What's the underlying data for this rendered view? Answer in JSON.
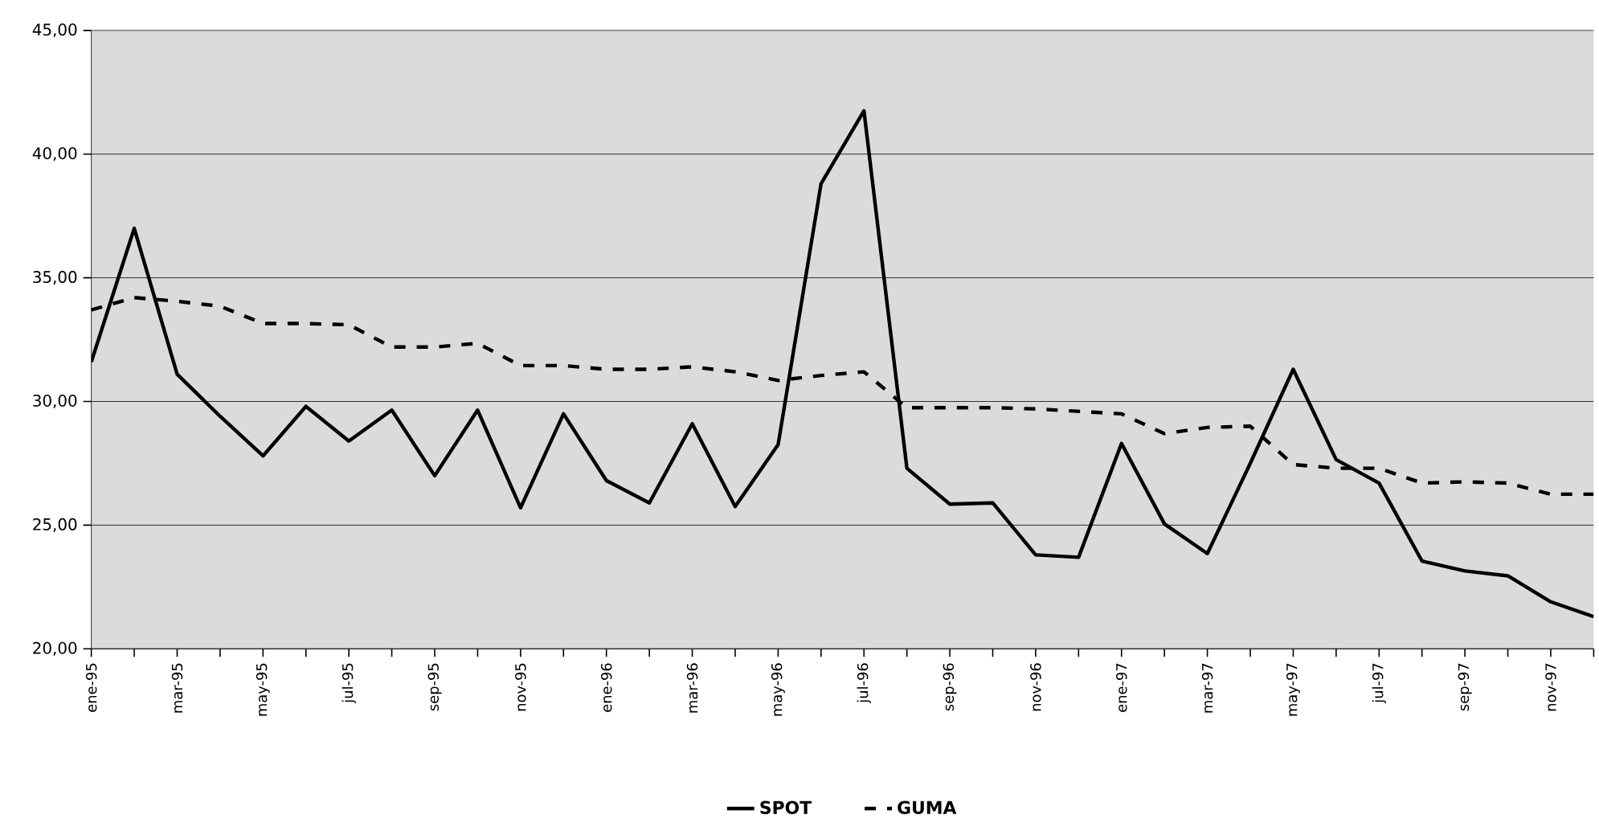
{
  "chart_data": {
    "type": "line",
    "categories": [
      "ene-95",
      null,
      "mar-95",
      null,
      "may-95",
      null,
      "jul-95",
      null,
      "sep-95",
      null,
      "nov-95",
      null,
      "ene-96",
      null,
      "mar-96",
      null,
      "may-96",
      null,
      "jul-96",
      null,
      "sep-96",
      null,
      "nov-96",
      null,
      "ene-97",
      null,
      "mar-97",
      null,
      "may-97",
      null,
      "jul-97",
      null,
      "sep-97",
      null,
      "nov-97",
      null
    ],
    "series": [
      {
        "name": "SPOT",
        "color": "#000000",
        "line_style": "solid",
        "values": [
          31.6,
          37.0,
          31.1,
          29.4,
          27.8,
          29.8,
          28.4,
          29.65,
          27.0,
          29.65,
          25.7,
          29.5,
          26.8,
          25.9,
          29.1,
          25.75,
          28.25,
          38.8,
          41.75,
          27.3,
          25.85,
          25.9,
          23.8,
          23.7,
          28.3,
          25.05,
          23.85,
          27.5,
          31.3,
          27.65,
          26.7,
          23.55,
          23.15,
          22.95,
          21.9,
          21.3
        ]
      },
      {
        "name": "GUMA",
        "color": "#000000",
        "line_style": "dashed",
        "values": [
          33.7,
          34.2,
          34.05,
          33.85,
          33.15,
          33.15,
          33.1,
          32.2,
          32.2,
          32.35,
          31.45,
          31.45,
          31.3,
          31.3,
          31.4,
          31.2,
          30.85,
          31.05,
          31.2,
          29.75,
          29.75,
          29.75,
          29.7,
          29.6,
          29.5,
          28.7,
          28.95,
          29.0,
          27.45,
          27.3,
          27.3,
          26.7,
          26.75,
          26.7,
          26.25,
          26.25
        ]
      }
    ],
    "ylim": [
      20,
      45
    ],
    "yticks": [
      {
        "value": 20,
        "label": "20,00"
      },
      {
        "value": 25,
        "label": "25,00"
      },
      {
        "value": 30,
        "label": "30,00"
      },
      {
        "value": 35,
        "label": "35,00"
      },
      {
        "value": 40,
        "label": "40,00"
      },
      {
        "value": 45,
        "label": "45,00"
      }
    ],
    "grid": "y",
    "legend": "bottom",
    "marker": "none"
  }
}
